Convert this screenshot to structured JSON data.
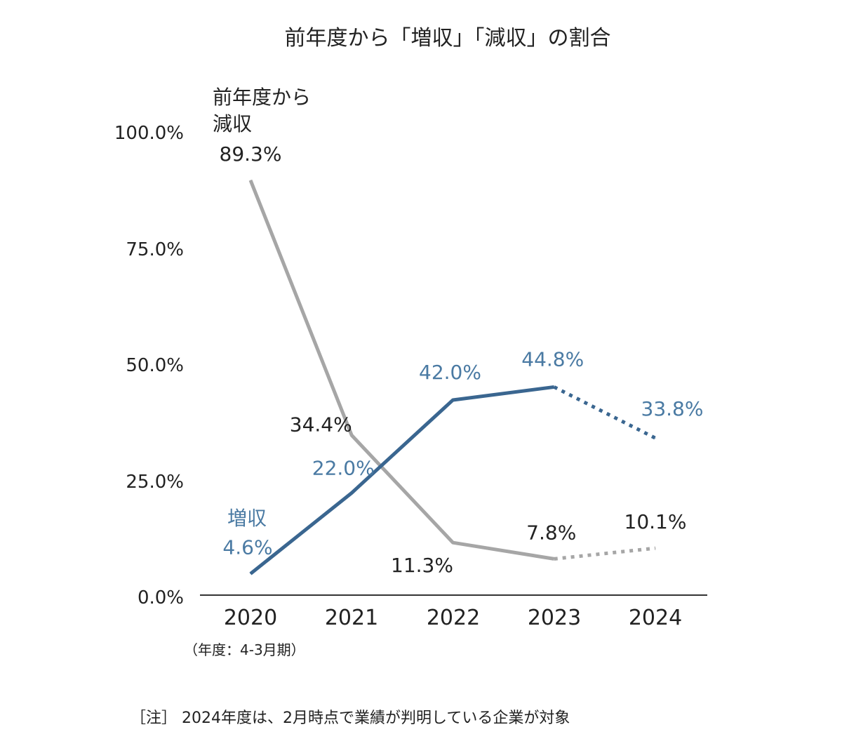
{
  "chart_data": {
    "type": "line",
    "title": "前年度から「増収」「減収」の割合",
    "categories": [
      "2020",
      "2021",
      "2022",
      "2023",
      "2024"
    ],
    "x_note": "（年度：4-3月期）",
    "y_ticks": [
      "0.0%",
      "25.0%",
      "50.0%",
      "75.0%",
      "100.0%"
    ],
    "ylim": [
      0,
      100
    ],
    "grid": false,
    "series": [
      {
        "name": "増収",
        "values": [
          4.6,
          22.0,
          42.0,
          44.8,
          33.8
        ],
        "labels": [
          "4.6%",
          "22.0%",
          "42.0%",
          "44.8%",
          "33.8%"
        ],
        "color": "#3a6690",
        "label_color": "#4a7aa3",
        "dotted_from_index": 3
      },
      {
        "name": "前年度から減収",
        "name_lines": [
          "前年度から",
          "減収"
        ],
        "values": [
          89.3,
          34.4,
          11.3,
          7.8,
          10.1
        ],
        "labels": [
          "89.3%",
          "34.4%",
          "11.3%",
          "7.8%",
          "10.1%"
        ],
        "color": "#a6a6a6",
        "label_color": "#222222",
        "dotted_from_index": 3
      }
    ],
    "footnote": "［注］ 2024年度は、2月時点で業績が判明している企業が対象"
  }
}
